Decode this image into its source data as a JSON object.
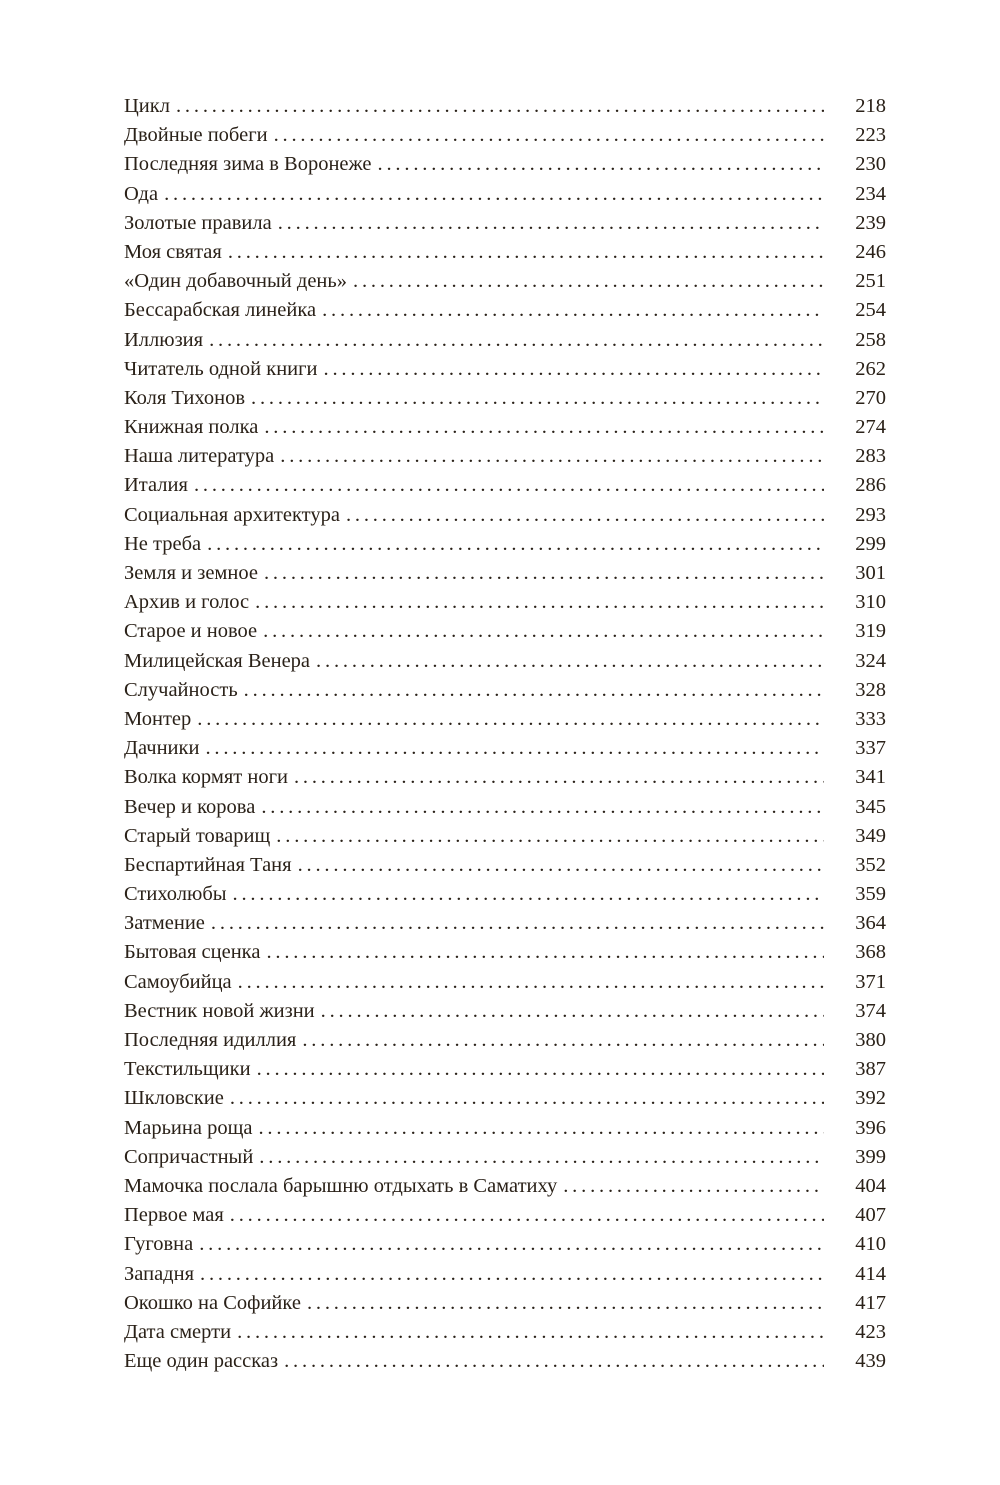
{
  "toc": {
    "entries": [
      {
        "title": "Цикл",
        "page": "218"
      },
      {
        "title": "Двойные побеги",
        "page": "223"
      },
      {
        "title": "Последняя зима в Воронеже",
        "page": "230"
      },
      {
        "title": "Ода",
        "page": "234"
      },
      {
        "title": "Золотые правила",
        "page": "239"
      },
      {
        "title": "Моя святая",
        "page": "246"
      },
      {
        "title": "«Один добавочный день»",
        "page": "251"
      },
      {
        "title": "Бессарабская линейка",
        "page": "254"
      },
      {
        "title": "Иллюзия",
        "page": "258"
      },
      {
        "title": "Читатель одной книги",
        "page": "262"
      },
      {
        "title": "Коля Тихонов",
        "page": "270"
      },
      {
        "title": "Книжная полка",
        "page": "274"
      },
      {
        "title": "Наша литература",
        "page": "283"
      },
      {
        "title": "Италия",
        "page": "286"
      },
      {
        "title": "Социальная архитектура",
        "page": "293"
      },
      {
        "title": "Не треба",
        "page": "299"
      },
      {
        "title": "Земля и земное",
        "page": "301"
      },
      {
        "title": "Архив и голос",
        "page": "310"
      },
      {
        "title": "Старое и новое",
        "page": "319"
      },
      {
        "title": "Милицейская Венера",
        "page": "324"
      },
      {
        "title": "Случайность",
        "page": "328"
      },
      {
        "title": "Монтер",
        "page": "333"
      },
      {
        "title": "Дачники",
        "page": "337"
      },
      {
        "title": "Волка кормят ноги",
        "page": "341"
      },
      {
        "title": "Вечер и корова",
        "page": "345"
      },
      {
        "title": "Старый товарищ",
        "page": "349"
      },
      {
        "title": "Беспартийная Таня",
        "page": "352"
      },
      {
        "title": "Стихолюбы",
        "page": "359"
      },
      {
        "title": "Затмение",
        "page": "364"
      },
      {
        "title": "Бытовая сценка",
        "page": "368"
      },
      {
        "title": "Самоубийца",
        "page": "371"
      },
      {
        "title": "Вестник новой жизни",
        "page": "374"
      },
      {
        "title": "Последняя идиллия",
        "page": "380"
      },
      {
        "title": "Текстильщики",
        "page": "387"
      },
      {
        "title": "Шкловские",
        "page": "392"
      },
      {
        "title": "Марьина роща",
        "page": "396"
      },
      {
        "title": "Сопричастный",
        "page": "399"
      },
      {
        "title": "Мамочка послала барышню отдыхать в Саматиху",
        "page": "404"
      },
      {
        "title": "Первое мая",
        "page": "407"
      },
      {
        "title": "Гуговна",
        "page": "410"
      },
      {
        "title": "Западня",
        "page": "414"
      },
      {
        "title": "Окошко на Софийке",
        "page": "417"
      },
      {
        "title": "Дата смерти",
        "page": "423"
      },
      {
        "title": "Еще один рассказ",
        "page": "439"
      }
    ]
  }
}
